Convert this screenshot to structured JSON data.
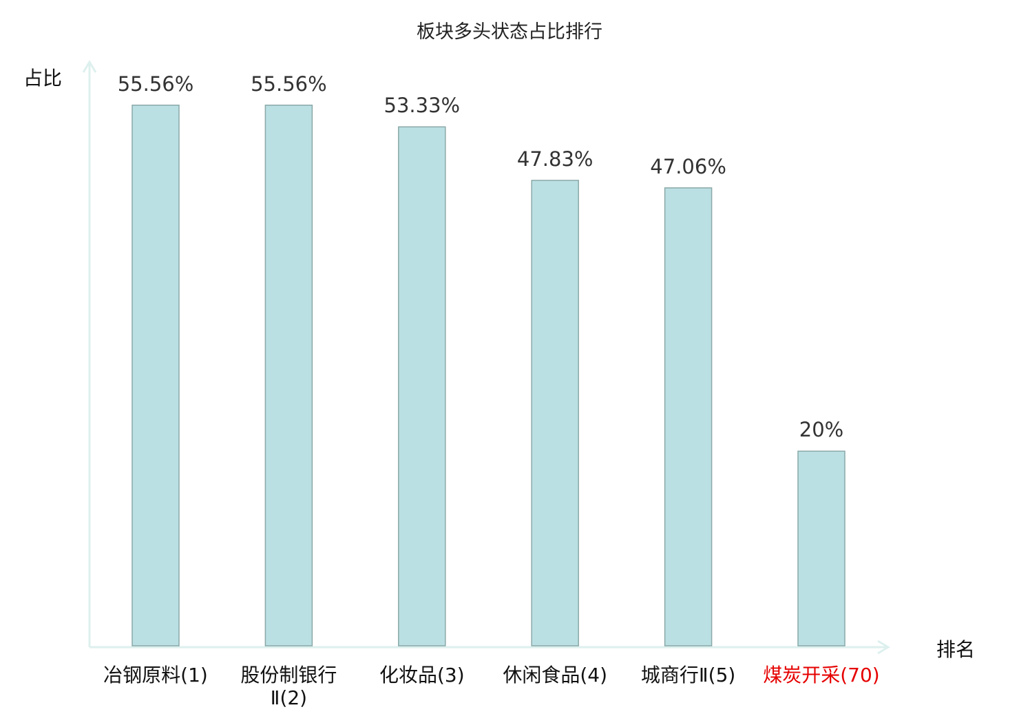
{
  "chart_data": {
    "type": "bar",
    "title": "板块多头状态占比排行",
    "xlabel": "排名",
    "ylabel": "占比",
    "categories": [
      "冶钢原料(1)",
      "股份制银行Ⅱ(2)",
      "化妆品(3)",
      "休闲食品(4)",
      "城商行Ⅱ(5)",
      "煤炭开采(70)"
    ],
    "values": [
      55.56,
      55.56,
      53.33,
      47.83,
      47.06,
      20
    ],
    "value_labels": [
      "55.56%",
      "55.56%",
      "53.33%",
      "47.83%",
      "47.06%",
      "20%"
    ],
    "highlighted_category_index": 5,
    "ylim": [
      0,
      60
    ],
    "grid": false,
    "legend": "none",
    "colors": {
      "bar_fill": "#bbe0e3",
      "bar_stroke": "#8aa8a8",
      "axis": "#ddf0ee",
      "highlight_label": "#e60000",
      "label": "#111111"
    }
  }
}
